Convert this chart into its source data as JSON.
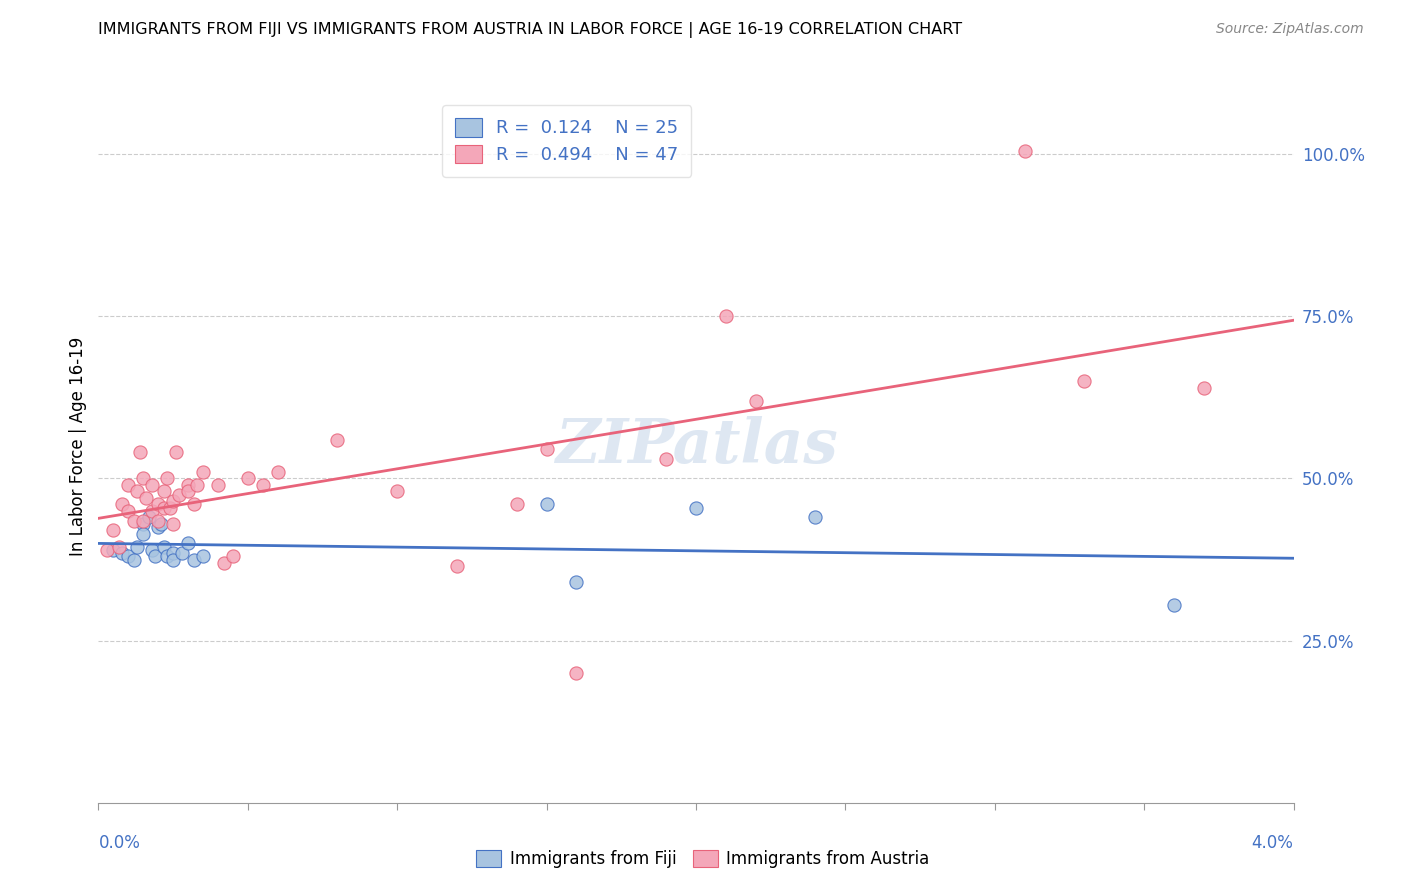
{
  "title": "IMMIGRANTS FROM FIJI VS IMMIGRANTS FROM AUSTRIA IN LABOR FORCE | AGE 16-19 CORRELATION CHART",
  "source": "Source: ZipAtlas.com",
  "ylabel": "In Labor Force | Age 16-19",
  "ylabel_ticks": [
    "100.0%",
    "75.0%",
    "50.0%",
    "25.0%"
  ],
  "ylabel_tick_vals": [
    1.0,
    0.75,
    0.5,
    0.25
  ],
  "fiji_R": "0.124",
  "fiji_N": "25",
  "austria_R": "0.494",
  "austria_N": "47",
  "fiji_color": "#a8c4e0",
  "austria_color": "#f4a7b9",
  "fiji_line_color": "#4472c4",
  "austria_line_color": "#e8637a",
  "fiji_scatter": [
    [
      0.0005,
      0.39
    ],
    [
      0.0008,
      0.385
    ],
    [
      0.001,
      0.38
    ],
    [
      0.0012,
      0.375
    ],
    [
      0.0013,
      0.395
    ],
    [
      0.0015,
      0.43
    ],
    [
      0.0015,
      0.415
    ],
    [
      0.0017,
      0.44
    ],
    [
      0.0018,
      0.39
    ],
    [
      0.0019,
      0.38
    ],
    [
      0.002,
      0.425
    ],
    [
      0.0021,
      0.43
    ],
    [
      0.0022,
      0.395
    ],
    [
      0.0023,
      0.38
    ],
    [
      0.0025,
      0.385
    ],
    [
      0.0025,
      0.375
    ],
    [
      0.0028,
      0.385
    ],
    [
      0.003,
      0.4
    ],
    [
      0.0032,
      0.375
    ],
    [
      0.0035,
      0.38
    ],
    [
      0.015,
      0.46
    ],
    [
      0.016,
      0.34
    ],
    [
      0.02,
      0.455
    ],
    [
      0.024,
      0.44
    ],
    [
      0.036,
      0.305
    ]
  ],
  "austria_scatter": [
    [
      0.0003,
      0.39
    ],
    [
      0.0005,
      0.42
    ],
    [
      0.0007,
      0.395
    ],
    [
      0.0008,
      0.46
    ],
    [
      0.001,
      0.49
    ],
    [
      0.001,
      0.45
    ],
    [
      0.0012,
      0.435
    ],
    [
      0.0013,
      0.48
    ],
    [
      0.0014,
      0.54
    ],
    [
      0.0015,
      0.435
    ],
    [
      0.0015,
      0.5
    ],
    [
      0.0016,
      0.47
    ],
    [
      0.0018,
      0.45
    ],
    [
      0.0018,
      0.49
    ],
    [
      0.002,
      0.46
    ],
    [
      0.002,
      0.435
    ],
    [
      0.0022,
      0.455
    ],
    [
      0.0022,
      0.48
    ],
    [
      0.0023,
      0.5
    ],
    [
      0.0024,
      0.455
    ],
    [
      0.0025,
      0.465
    ],
    [
      0.0025,
      0.43
    ],
    [
      0.0026,
      0.54
    ],
    [
      0.0027,
      0.475
    ],
    [
      0.003,
      0.49
    ],
    [
      0.003,
      0.48
    ],
    [
      0.0032,
      0.46
    ],
    [
      0.0033,
      0.49
    ],
    [
      0.0035,
      0.51
    ],
    [
      0.004,
      0.49
    ],
    [
      0.0042,
      0.37
    ],
    [
      0.0045,
      0.38
    ],
    [
      0.005,
      0.5
    ],
    [
      0.0055,
      0.49
    ],
    [
      0.006,
      0.51
    ],
    [
      0.008,
      0.56
    ],
    [
      0.01,
      0.48
    ],
    [
      0.012,
      0.365
    ],
    [
      0.014,
      0.46
    ],
    [
      0.015,
      0.545
    ],
    [
      0.016,
      0.2
    ],
    [
      0.019,
      0.53
    ],
    [
      0.021,
      0.75
    ],
    [
      0.022,
      0.62
    ],
    [
      0.031,
      1.005
    ],
    [
      0.033,
      0.65
    ],
    [
      0.037,
      0.64
    ]
  ],
  "xlim": [
    0.0,
    0.04
  ],
  "ylim": [
    0.0,
    1.1
  ],
  "watermark": "ZIPatlas"
}
